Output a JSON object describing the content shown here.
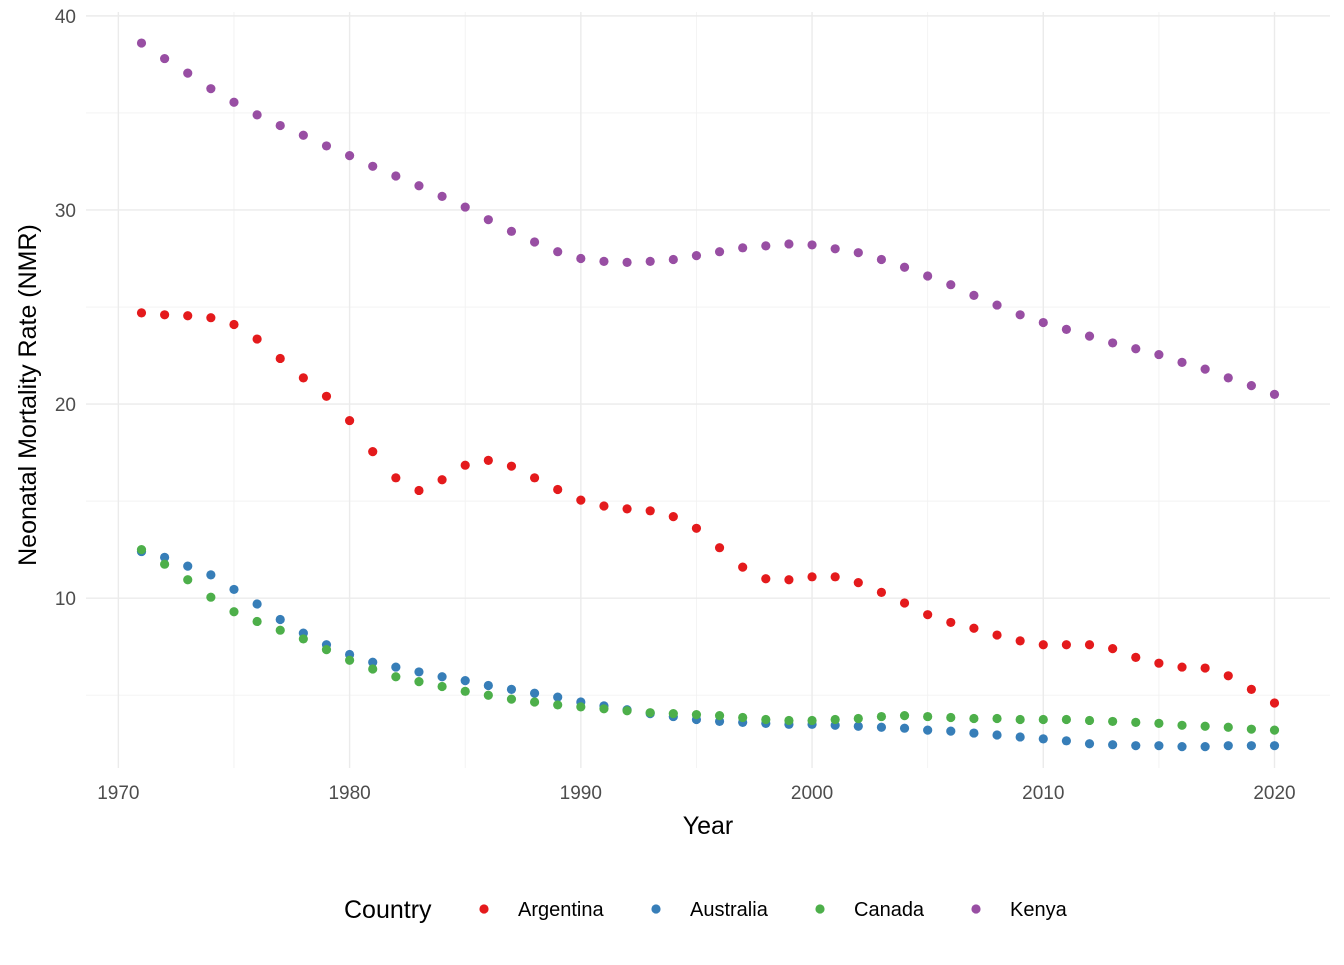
{
  "chart_data": {
    "type": "scatter",
    "title": "",
    "xlabel": "Year",
    "ylabel": "Neonatal Mortality Rate (NMR)",
    "xlim": [
      1968.6,
      2022.4
    ],
    "ylim": [
      1.25,
      40.2
    ],
    "x_ticks": [
      1970,
      1980,
      1990,
      2000,
      2010,
      2020
    ],
    "y_ticks": [
      10,
      20,
      30,
      40
    ],
    "grid": true,
    "legend": {
      "title": "Country",
      "position": "bottom"
    },
    "x": [
      1971,
      1972,
      1973,
      1974,
      1975,
      1976,
      1977,
      1978,
      1979,
      1980,
      1981,
      1982,
      1983,
      1984,
      1985,
      1986,
      1987,
      1988,
      1989,
      1990,
      1991,
      1992,
      1993,
      1994,
      1995,
      1996,
      1997,
      1998,
      1999,
      2000,
      2001,
      2002,
      2003,
      2004,
      2005,
      2006,
      2007,
      2008,
      2009,
      2010,
      2011,
      2012,
      2013,
      2014,
      2015,
      2016,
      2017,
      2018,
      2019,
      2020
    ],
    "series": [
      {
        "name": "Argentina",
        "color": "#e41a1c",
        "values": [
          24.7,
          24.6,
          24.55,
          24.45,
          24.1,
          23.35,
          22.35,
          21.35,
          20.4,
          19.15,
          17.55,
          16.2,
          15.55,
          16.1,
          16.85,
          17.1,
          16.8,
          16.2,
          15.6,
          15.05,
          14.75,
          14.6,
          14.5,
          14.2,
          13.6,
          12.6,
          11.6,
          11.0,
          10.95,
          11.1,
          11.1,
          10.8,
          10.3,
          9.75,
          9.15,
          8.75,
          8.45,
          8.1,
          7.8,
          7.6,
          7.6,
          7.6,
          7.4,
          6.95,
          6.65,
          6.45,
          6.4,
          6.0,
          5.3,
          4.6
        ]
      },
      {
        "name": "Australia",
        "color": "#377eb8",
        "values": [
          12.4,
          12.1,
          11.65,
          11.2,
          10.45,
          9.7,
          8.9,
          8.2,
          7.6,
          7.1,
          6.7,
          6.45,
          6.2,
          5.95,
          5.75,
          5.5,
          5.3,
          5.1,
          4.9,
          4.65,
          4.45,
          4.25,
          4.05,
          3.9,
          3.75,
          3.65,
          3.6,
          3.55,
          3.5,
          3.5,
          3.45,
          3.4,
          3.35,
          3.3,
          3.2,
          3.15,
          3.05,
          2.95,
          2.85,
          2.75,
          2.65,
          2.5,
          2.45,
          2.4,
          2.4,
          2.35,
          2.35,
          2.4,
          2.4,
          2.4
        ]
      },
      {
        "name": "Canada",
        "color": "#4daf4a",
        "values": [
          12.5,
          11.75,
          10.95,
          10.05,
          9.3,
          8.8,
          8.35,
          7.9,
          7.35,
          6.8,
          6.35,
          5.95,
          5.7,
          5.45,
          5.2,
          5.0,
          4.8,
          4.65,
          4.5,
          4.4,
          4.3,
          4.2,
          4.1,
          4.05,
          4.0,
          3.95,
          3.85,
          3.75,
          3.7,
          3.7,
          3.75,
          3.8,
          3.9,
          3.95,
          3.9,
          3.85,
          3.8,
          3.8,
          3.75,
          3.75,
          3.75,
          3.7,
          3.65,
          3.6,
          3.55,
          3.45,
          3.4,
          3.35,
          3.25,
          3.2
        ]
      },
      {
        "name": "Kenya",
        "color": "#984ea3",
        "values": [
          38.6,
          37.8,
          37.05,
          36.25,
          35.55,
          34.9,
          34.35,
          33.85,
          33.3,
          32.8,
          32.25,
          31.75,
          31.25,
          30.7,
          30.15,
          29.5,
          28.9,
          28.35,
          27.85,
          27.5,
          27.35,
          27.3,
          27.35,
          27.45,
          27.65,
          27.85,
          28.05,
          28.15,
          28.25,
          28.2,
          28.0,
          27.8,
          27.45,
          27.05,
          26.6,
          26.15,
          25.6,
          25.1,
          24.6,
          24.2,
          23.85,
          23.5,
          23.15,
          22.85,
          22.55,
          22.15,
          21.8,
          21.35,
          20.95,
          20.5
        ]
      }
    ]
  }
}
